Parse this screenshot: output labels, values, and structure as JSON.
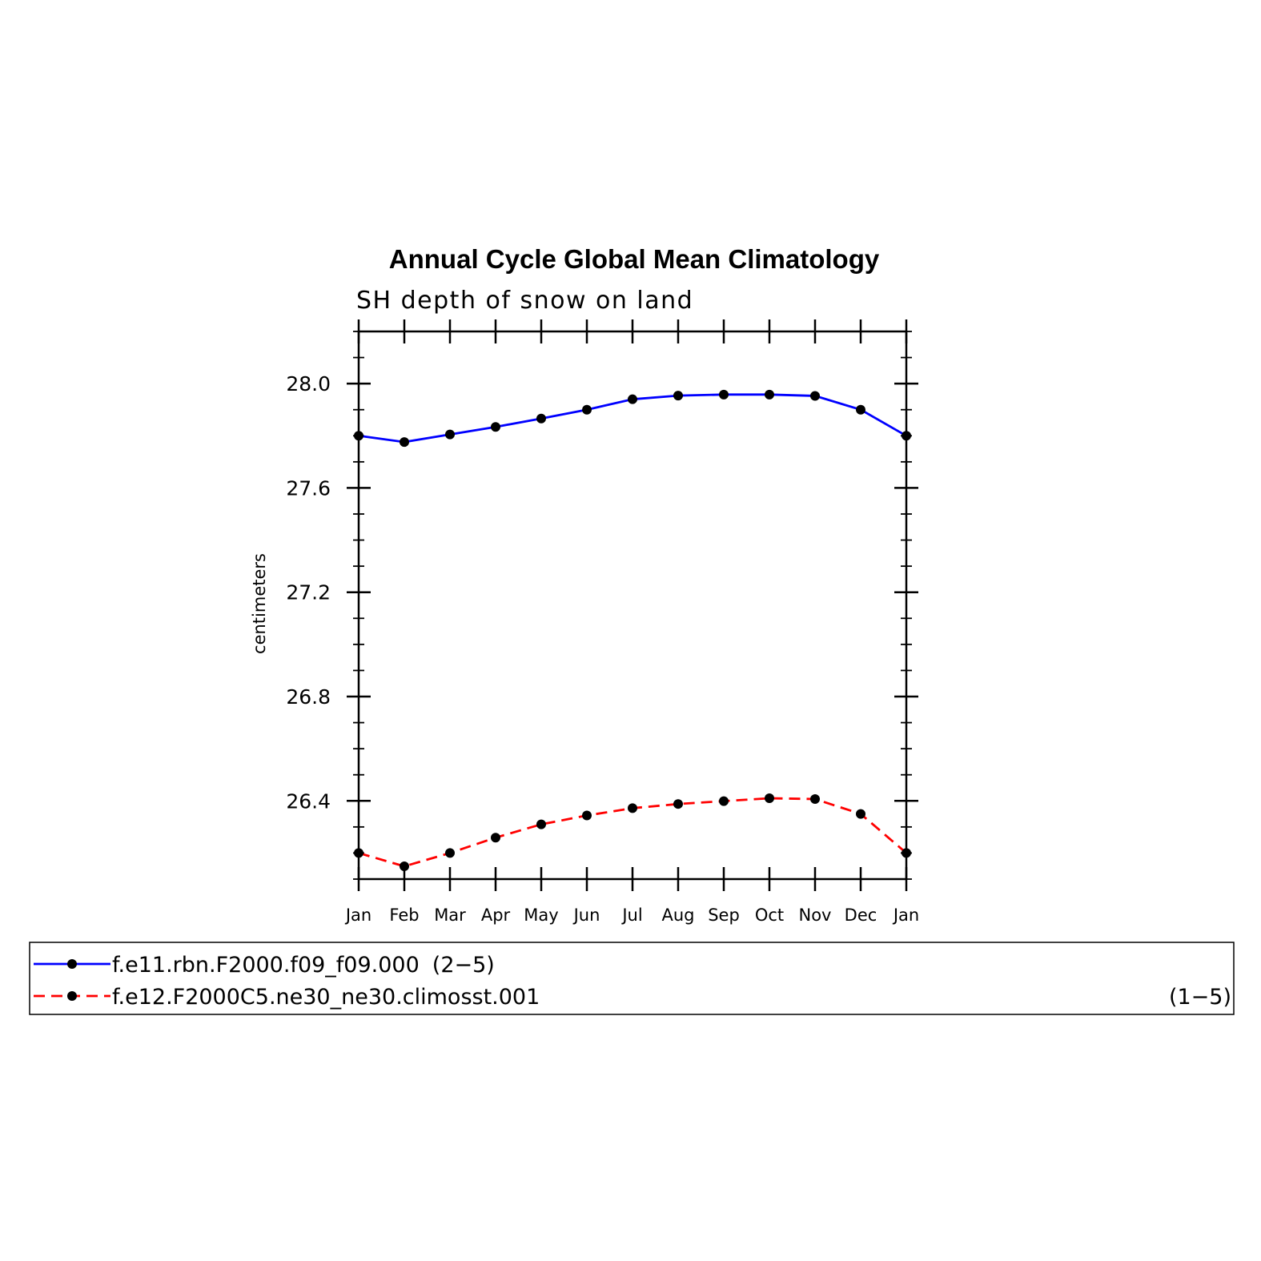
{
  "chart_data": {
    "type": "line",
    "title": "Annual Cycle Global Mean Climatology",
    "subtitle": "SH depth of snow on land",
    "ylabel": "centimeters",
    "xlabel": "",
    "categories": [
      "Jan",
      "Feb",
      "Mar",
      "Apr",
      "May",
      "Jun",
      "Jul",
      "Aug",
      "Sep",
      "Oct",
      "Nov",
      "Dec",
      "Jan"
    ],
    "ylim": [
      26.1,
      28.2
    ],
    "yticks": [
      "26.4",
      "26.8",
      "27.2",
      "27.6",
      "28.0"
    ],
    "series": [
      {
        "name": "f.e11.rbn.F2000.f09_f09.000",
        "range": "(2−5)",
        "color": "#0000ff",
        "style": "solid",
        "marker": "circle",
        "values": [
          27.8,
          27.776,
          27.805,
          27.834,
          27.866,
          27.9,
          27.94,
          27.954,
          27.958,
          27.958,
          27.953,
          27.9,
          27.8
        ]
      },
      {
        "name": "f.e12.F2000C5.ne30_ne30.climosst.001",
        "range": "(1−5)",
        "color": "#ff0000",
        "style": "dashed",
        "marker": "circle",
        "values": [
          26.2,
          26.149,
          26.2,
          26.259,
          26.31,
          26.344,
          26.372,
          26.388,
          26.399,
          26.41,
          26.407,
          26.35,
          26.2
        ]
      }
    ],
    "legend_position": "bottom",
    "grid": false
  }
}
